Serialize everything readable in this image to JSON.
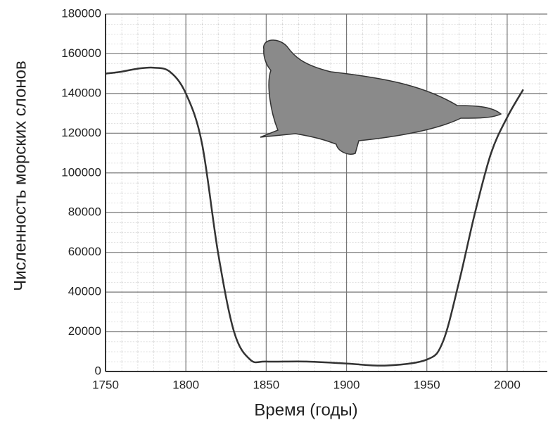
{
  "chart_data": {
    "type": "line",
    "x_label": "Время (годы)",
    "y_label": "Численность морских слонов",
    "x": [
      1750,
      1760,
      1770,
      1780,
      1790,
      1800,
      1810,
      1820,
      1830,
      1840,
      1850,
      1875,
      1900,
      1925,
      1950,
      1960,
      1970,
      1980,
      1990,
      2000,
      2010
    ],
    "values": [
      150000,
      151000,
      152500,
      153000,
      151000,
      140000,
      115000,
      60000,
      20000,
      6000,
      5000,
      5000,
      4000,
      3000,
      6000,
      15000,
      45000,
      80000,
      110000,
      128000,
      142000
    ],
    "color": "#333333",
    "xlim": [
      1750,
      2025
    ],
    "xticks": [
      1750,
      1800,
      1850,
      1900,
      1950,
      2000
    ],
    "ylim": [
      0,
      180000
    ],
    "yticks": [
      0,
      20000,
      40000,
      60000,
      80000,
      100000,
      120000,
      140000,
      160000,
      180000
    ],
    "grid": true
  }
}
